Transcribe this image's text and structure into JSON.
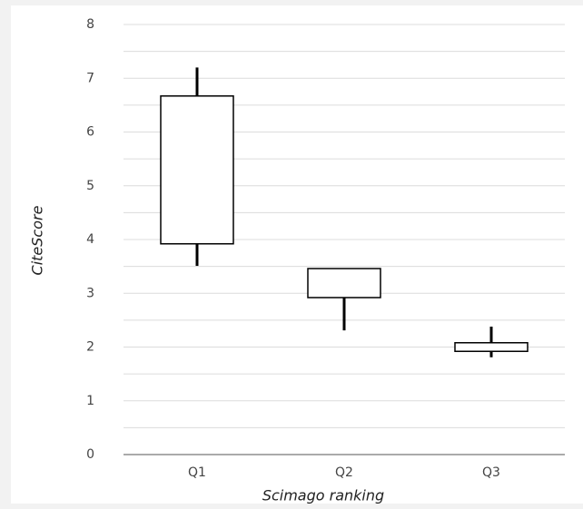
{
  "chart_data": {
    "type": "box",
    "x_label": "Scimago ranking",
    "y_label": "CiteScore",
    "categories": [
      "Q1",
      "Q2",
      "Q3"
    ],
    "low": [
      3.51,
      2.31,
      1.81
    ],
    "q1": [
      3.92,
      2.92,
      1.92
    ],
    "q3": [
      6.67,
      3.46,
      2.08
    ],
    "high": [
      7.2,
      3.46,
      2.38
    ],
    "ylim": [
      0,
      8
    ],
    "yticks": [
      0,
      1,
      2,
      3,
      4,
      5,
      6,
      7,
      8
    ],
    "minor_yticks": [
      0.5,
      1.5,
      2.5,
      3.5,
      4.5,
      5.5,
      6.5,
      7.5
    ],
    "grid": true,
    "box_color": "#ffffff",
    "line_color": "#000000"
  }
}
